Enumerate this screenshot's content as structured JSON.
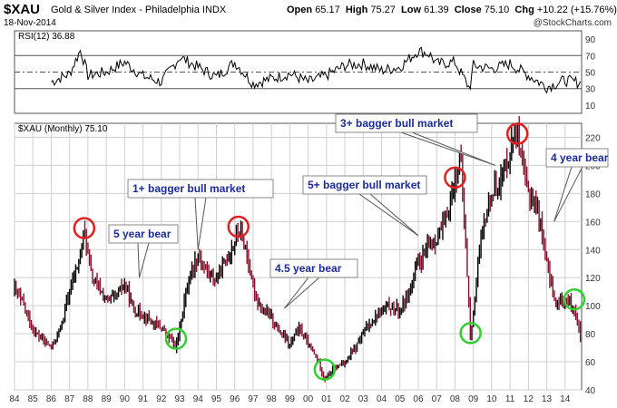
{
  "header": {
    "symbol": "$XAU",
    "name": "Gold & Silver Index - Philadelphia INDX",
    "date": "18-Nov-2014",
    "open_label": "Open",
    "open": "65.17",
    "high_label": "High",
    "high": "75.27",
    "low_label": "Low",
    "low": "61.39",
    "close_label": "Close",
    "close": "75.10",
    "chg_label": "Chg",
    "chg": "+10.22 (+15.76%)",
    "copyright": "@StockCharts.com"
  },
  "colors": {
    "candle_main": "#8a0f2a",
    "candle_dark": "#000000",
    "callout_text": "#1a2a9a",
    "red_circle": "#e02020",
    "green_circle": "#30d030",
    "grid": "#cfcfcf"
  },
  "chart_data": [
    {
      "type": "line",
      "title": "RSI(12) 36.88",
      "x_range": [
        1984,
        2014.9
      ],
      "ylim": [
        0,
        100
      ],
      "y_ticks": [
        10,
        30,
        50,
        70,
        90
      ],
      "reference_lines": [
        30,
        50,
        70
      ],
      "x": [
        1986,
        1987,
        1987.6,
        1988,
        1989,
        1990,
        1991,
        1992,
        1993,
        1994,
        1995,
        1996,
        1997,
        1998,
        1999,
        2000,
        2001,
        2002,
        2003,
        2004,
        2005,
        2006,
        2006.6,
        2007,
        2008,
        2008.8,
        2009,
        2010,
        2011,
        2012,
        2013,
        2014,
        2014.9
      ],
      "values": [
        38,
        48,
        77,
        46,
        50,
        62,
        45,
        38,
        68,
        56,
        44,
        62,
        36,
        42,
        48,
        38,
        46,
        58,
        60,
        52,
        56,
        76,
        72,
        60,
        62,
        30,
        58,
        54,
        60,
        46,
        32,
        40,
        36.88
      ]
    },
    {
      "type": "line",
      "title": "$XAU (Monthly) 75.10",
      "x_tick_labels": [
        "84",
        "85",
        "86",
        "87",
        "88",
        "89",
        "90",
        "91",
        "92",
        "93",
        "94",
        "95",
        "96",
        "97",
        "98",
        "99",
        "00",
        "01",
        "02",
        "03",
        "04",
        "05",
        "06",
        "07",
        "08",
        "09",
        "10",
        "11",
        "12",
        "13",
        "14"
      ],
      "x_range": [
        1984,
        2014.9
      ],
      "ylim": [
        40,
        230
      ],
      "y_ticks": [
        40,
        60,
        80,
        100,
        120,
        140,
        160,
        180,
        200,
        220
      ],
      "x": [
        1984.0,
        1984.5,
        1985.0,
        1985.5,
        1986.0,
        1986.5,
        1987.0,
        1987.5,
        1987.8,
        1988.2,
        1988.6,
        1989.0,
        1989.5,
        1990.0,
        1990.5,
        1991.0,
        1991.5,
        1992.0,
        1992.5,
        1992.8,
        1993.2,
        1993.6,
        1994.0,
        1994.5,
        1995.0,
        1995.5,
        1996.0,
        1996.2,
        1996.6,
        1997.0,
        1997.5,
        1998.0,
        1998.5,
        1999.0,
        1999.5,
        2000.0,
        2000.5,
        2000.9,
        2001.5,
        2002.0,
        2002.5,
        2003.0,
        2003.5,
        2004.0,
        2004.5,
        2005.0,
        2005.5,
        2006.0,
        2006.5,
        2007.0,
        2007.5,
        2008.0,
        2008.3,
        2008.6,
        2008.85,
        2009.2,
        2009.6,
        2010.0,
        2010.5,
        2011.0,
        2011.3,
        2011.7,
        2012.0,
        2012.5,
        2013.0,
        2013.5,
        2014.0,
        2014.5,
        2014.88
      ],
      "values": [
        112,
        100,
        82,
        76,
        70,
        84,
        110,
        132,
        154,
        120,
        112,
        104,
        106,
        116,
        96,
        94,
        88,
        84,
        76,
        70,
        100,
        124,
        136,
        124,
        118,
        132,
        146,
        155,
        140,
        112,
        96,
        92,
        80,
        72,
        84,
        72,
        62,
        48,
        56,
        60,
        68,
        80,
        90,
        96,
        100,
        96,
        110,
        130,
        140,
        148,
        160,
        190,
        205,
        140,
        74,
        125,
        160,
        180,
        190,
        210,
        230,
        195,
        180,
        170,
        130,
        100,
        105,
        98,
        75.1
      ]
    }
  ],
  "annotations": {
    "callouts": [
      "1+ bagger bull market",
      "5 year bear",
      "4.5 year bear",
      "5+ bagger bull market",
      "3+ bagger bull market",
      "4 year bear"
    ],
    "red_circles_at": [
      1987.8,
      1996.2,
      2008.0,
      2011.4
    ],
    "green_circles_at": [
      1992.8,
      2000.9,
      2008.85,
      2014.5
    ]
  }
}
